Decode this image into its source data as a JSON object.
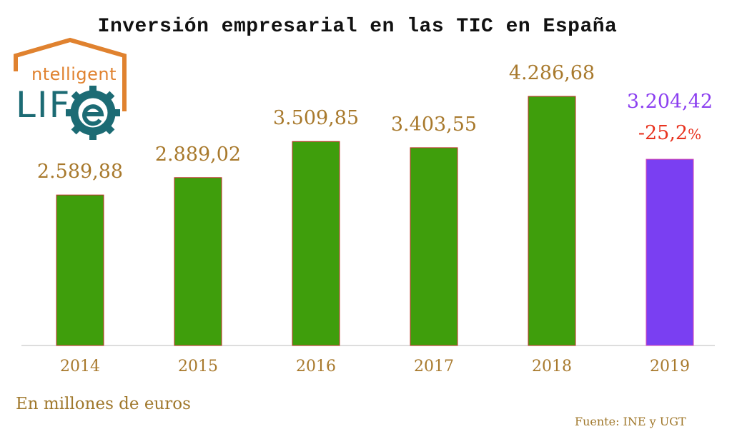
{
  "colors": {
    "bar": "#3f9e0c",
    "bar_border": "#c0302a",
    "highlight_bar": "#7a3ff2",
    "highlight_border": "#d94ab0",
    "value_label": "#a8792c",
    "highlight_value": "#8b3ff0",
    "change": "#e8321e",
    "axis": "#bbbbbb",
    "logo_orange": "#e0822f",
    "logo_teal": "#1c6b74"
  },
  "logo": {
    "top_text": "ntelligent",
    "bottom_text": "LIF"
  },
  "chart_data": {
    "type": "bar",
    "title": "Inversión empresarial en las TIC en España",
    "categories": [
      "2014",
      "2015",
      "2016",
      "2017",
      "2018",
      "2019"
    ],
    "values": [
      2589.88,
      2889.02,
      3509.85,
      3403.55,
      4286.68,
      3204.42
    ],
    "value_labels": [
      "2.589,88",
      "2.889,02",
      "3.509,85",
      "3.403,55",
      "4.286,68",
      "3.204,42"
    ],
    "highlight_index": 5,
    "annotation": {
      "category": "2019",
      "text": "-25,2",
      "suffix": "%"
    },
    "ylabel": "En millones de euros",
    "ylim": [
      0,
      4286.68
    ],
    "source": "Fuente: INE y UGT"
  }
}
